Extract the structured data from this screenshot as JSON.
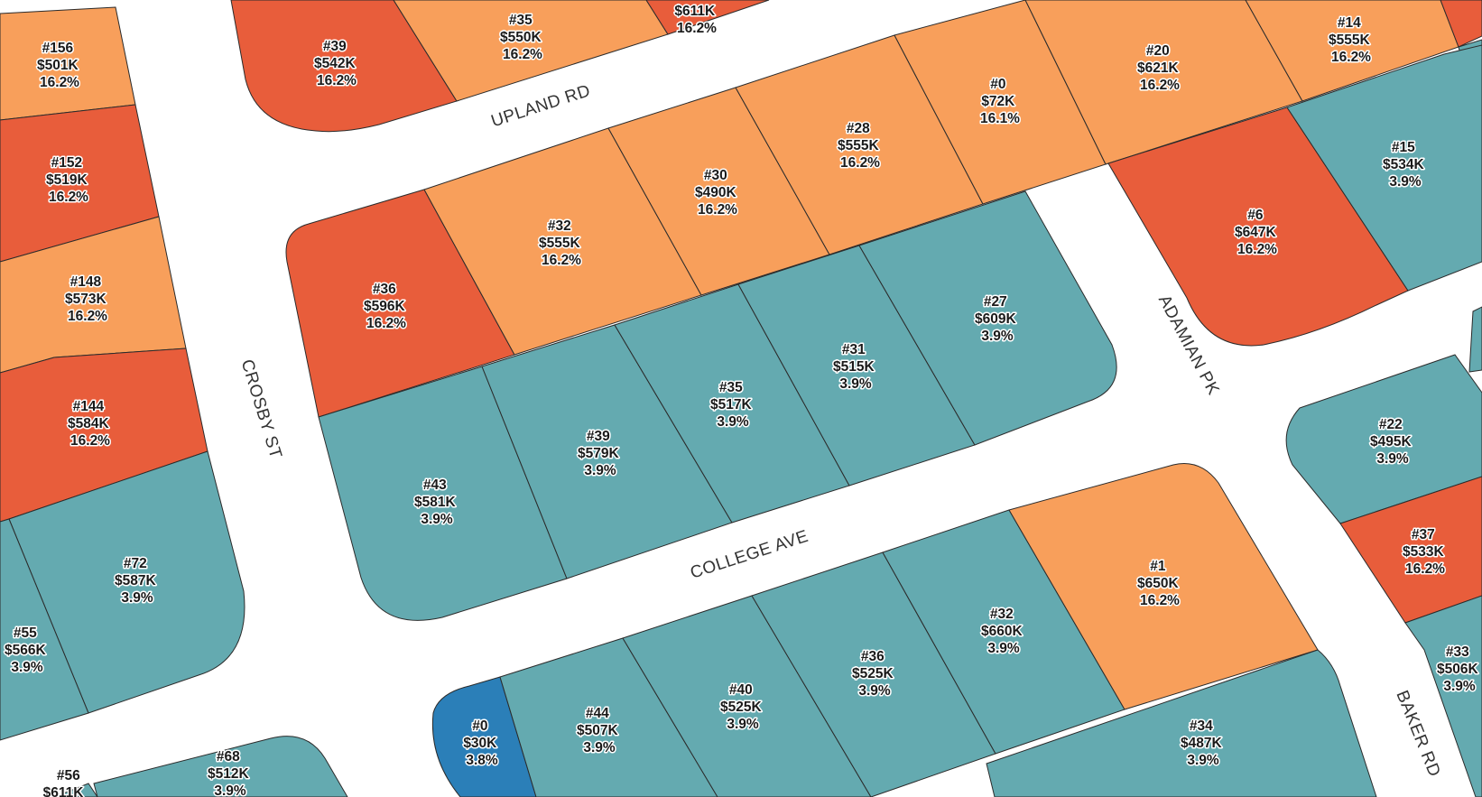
{
  "colors": {
    "low": "#64aab0",
    "mid": "#f89f5b",
    "high": "#e85d3b",
    "vacant": "#2b7fb8",
    "road": "#ffffff",
    "outline": "#2b2b2b"
  },
  "streets": {
    "upland": "UPLAND RD",
    "crosby": "CROSBY ST",
    "college": "COLLEGE AVE",
    "adamian": "ADAMIAN PK",
    "baker": "BAKER RD"
  },
  "parcels": [
    {
      "key": "p156",
      "id": "#156",
      "value": "$501K",
      "rate": "16.2%",
      "cls": "mid"
    },
    {
      "key": "p152",
      "id": "#152",
      "value": "$519K",
      "rate": "16.2%",
      "cls": "high"
    },
    {
      "key": "p148",
      "id": "#148",
      "value": "$573K",
      "rate": "16.2%",
      "cls": "mid"
    },
    {
      "key": "p144",
      "id": "#144",
      "value": "$584K",
      "rate": "16.2%",
      "cls": "high"
    },
    {
      "key": "p72",
      "id": "#72",
      "value": "$587K",
      "rate": "3.9%",
      "cls": "low"
    },
    {
      "key": "p55",
      "id": "#55",
      "value": "$566K",
      "rate": "3.9%",
      "cls": "low"
    },
    {
      "key": "p56",
      "id": "#56",
      "value": "$611K",
      "rate": "",
      "cls": "low"
    },
    {
      "key": "p68",
      "id": "#68",
      "value": "$512K",
      "rate": "3.9%",
      "cls": "low"
    },
    {
      "key": "p39n",
      "id": "#39",
      "value": "$542K",
      "rate": "16.2%",
      "cls": "high"
    },
    {
      "key": "p35n",
      "id": "#35",
      "value": "$550K",
      "rate": "16.2%",
      "cls": "mid"
    },
    {
      "key": "p611n",
      "id": "",
      "value": "$611K",
      "rate": "16.2%",
      "cls": "high"
    },
    {
      "key": "p36a",
      "id": "#36",
      "value": "$596K",
      "rate": "16.2%",
      "cls": "high"
    },
    {
      "key": "p32a",
      "id": "#32",
      "value": "$555K",
      "rate": "16.2%",
      "cls": "mid"
    },
    {
      "key": "p30",
      "id": "#30",
      "value": "$490K",
      "rate": "16.2%",
      "cls": "mid"
    },
    {
      "key": "p28",
      "id": "#28",
      "value": "$555K",
      "rate": "16.2%",
      "cls": "mid"
    },
    {
      "key": "p0a",
      "id": "#0",
      "value": "$72K",
      "rate": "16.1%",
      "cls": "mid"
    },
    {
      "key": "p20",
      "id": "#20",
      "value": "$621K",
      "rate": "16.2%",
      "cls": "mid"
    },
    {
      "key": "p14",
      "id": "#14",
      "value": "$555K",
      "rate": "16.2%",
      "cls": "mid"
    },
    {
      "key": "p43",
      "id": "#43",
      "value": "$581K",
      "rate": "3.9%",
      "cls": "low"
    },
    {
      "key": "p39b",
      "id": "#39",
      "value": "$579K",
      "rate": "3.9%",
      "cls": "low"
    },
    {
      "key": "p35b",
      "id": "#35",
      "value": "$517K",
      "rate": "3.9%",
      "cls": "low"
    },
    {
      "key": "p31",
      "id": "#31",
      "value": "$515K",
      "rate": "3.9%",
      "cls": "low"
    },
    {
      "key": "p27",
      "id": "#27",
      "value": "$609K",
      "rate": "3.9%",
      "cls": "low"
    },
    {
      "key": "p6",
      "id": "#6",
      "value": "$647K",
      "rate": "16.2%",
      "cls": "high"
    },
    {
      "key": "p15",
      "id": "#15",
      "value": "$534K",
      "rate": "3.9%",
      "cls": "low"
    },
    {
      "key": "p22",
      "id": "#22",
      "value": "$495K",
      "rate": "3.9%",
      "cls": "low"
    },
    {
      "key": "p37",
      "id": "#37",
      "value": "$533K",
      "rate": "16.2%",
      "cls": "high"
    },
    {
      "key": "p33",
      "id": "#33",
      "value": "$506K",
      "rate": "3.9%",
      "cls": "low"
    },
    {
      "key": "p0b",
      "id": "#0",
      "value": "$30K",
      "rate": "3.8%",
      "cls": "vacant"
    },
    {
      "key": "p44",
      "id": "#44",
      "value": "$507K",
      "rate": "3.9%",
      "cls": "low"
    },
    {
      "key": "p40",
      "id": "#40",
      "value": "$525K",
      "rate": "3.9%",
      "cls": "low"
    },
    {
      "key": "p36b",
      "id": "#36",
      "value": "$525K",
      "rate": "3.9%",
      "cls": "low"
    },
    {
      "key": "p32b",
      "id": "#32",
      "value": "$660K",
      "rate": "3.9%",
      "cls": "low"
    },
    {
      "key": "p1",
      "id": "#1",
      "value": "$650K",
      "rate": "16.2%",
      "cls": "mid"
    },
    {
      "key": "p34",
      "id": "#34",
      "value": "$487K",
      "rate": "3.9%",
      "cls": "low"
    }
  ]
}
